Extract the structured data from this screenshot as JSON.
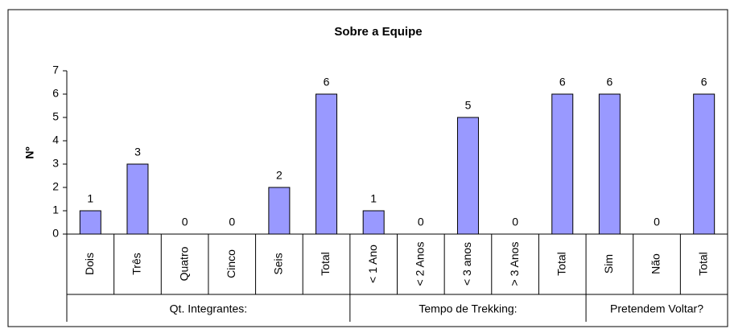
{
  "chart_data": {
    "type": "bar",
    "title": "Sobre a Equipe",
    "y_label": "Nº",
    "groups": [
      {
        "label": "Qt. Integrantes:",
        "categories": [
          "Dois",
          "Três",
          "Quatro",
          "Cinco",
          "Seis",
          "Total"
        ]
      },
      {
        "label": "Tempo de Trekking:",
        "categories": [
          "< 1 Ano",
          "< 2 Anos",
          "< 3 anos",
          "> 3 Anos",
          "Total"
        ]
      },
      {
        "label": "Pretendem Voltar?",
        "categories": [
          "Sim",
          "Não",
          "Total"
        ]
      }
    ],
    "values": [
      1,
      3,
      0,
      0,
      2,
      6,
      1,
      0,
      5,
      0,
      6,
      6,
      0,
      6
    ],
    "color": "#9999ff",
    "ylim": [
      0,
      7
    ],
    "yticks": [
      0,
      1,
      2,
      3,
      4,
      5,
      6,
      7
    ],
    "grid": false
  }
}
